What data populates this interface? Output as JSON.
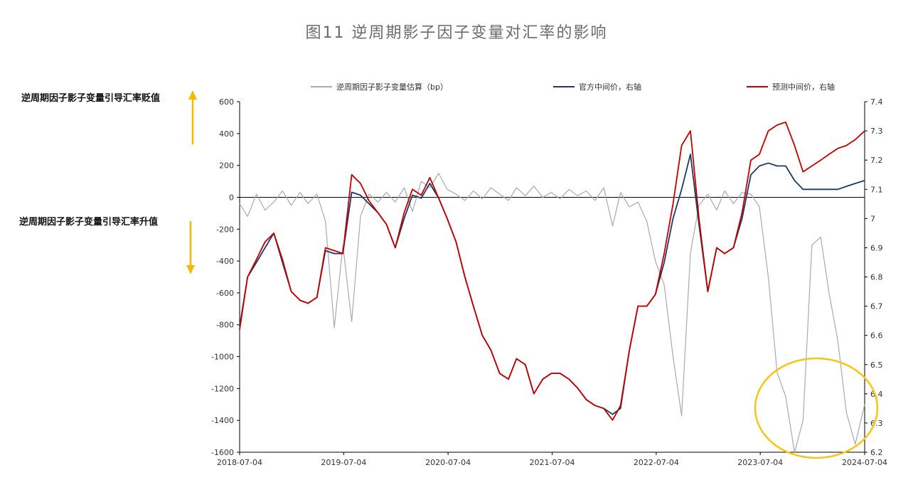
{
  "figure_title": "图11 逆周期影子因子变量对汇率的影响",
  "annotations": {
    "up_label": "逆周期因子影子变量引导汇率贬值",
    "down_label": "逆周期因子影子变量引导汇率升值",
    "arrow_color": "#f5b800",
    "highlight_circle_color": "#f5c518"
  },
  "chart_data": {
    "type": "line",
    "title": "",
    "x_ticks": [
      "2018-07-04",
      "2019-07-04",
      "2020-07-04",
      "2021-07-04",
      "2022-07-04",
      "2023-07-04",
      "2024-07-04"
    ],
    "x_range": [
      "2018-07-04",
      "2024-07-04"
    ],
    "y_left": {
      "min": -1600,
      "max": 600,
      "ticks": [
        600,
        400,
        200,
        0,
        -200,
        -400,
        -600,
        -800,
        -1000,
        -1200,
        -1400,
        -1600
      ]
    },
    "y_right": {
      "min": 6.2,
      "max": 7.4,
      "ticks": [
        "7.4",
        "7.3",
        "7.2",
        "7.1",
        "7",
        "6.9",
        "6.8",
        "6.7",
        "6.6",
        "6.5",
        "6.4",
        "6.3",
        "6.2"
      ]
    },
    "grid": false,
    "legend_position": "top",
    "series": [
      {
        "name": "逆周期因子影子变量估算（bp）",
        "axis": "left",
        "color": "#aaaaaa",
        "points": [
          [
            "2018-07-04",
            -40
          ],
          [
            "2018-08-01",
            -120
          ],
          [
            "2018-09-01",
            20
          ],
          [
            "2018-10-01",
            -80
          ],
          [
            "2018-11-01",
            -30
          ],
          [
            "2018-12-01",
            40
          ],
          [
            "2019-01-01",
            -50
          ],
          [
            "2019-02-01",
            30
          ],
          [
            "2019-03-01",
            -40
          ],
          [
            "2019-04-01",
            20
          ],
          [
            "2019-05-01",
            -150
          ],
          [
            "2019-06-01",
            -820
          ],
          [
            "2019-07-01",
            -300
          ],
          [
            "2019-08-01",
            -780
          ],
          [
            "2019-09-01",
            -120
          ],
          [
            "2019-10-01",
            20
          ],
          [
            "2019-11-01",
            -30
          ],
          [
            "2019-12-01",
            30
          ],
          [
            "2020-01-01",
            -30
          ],
          [
            "2020-02-01",
            60
          ],
          [
            "2020-03-01",
            -90
          ],
          [
            "2020-04-01",
            100
          ],
          [
            "2020-05-01",
            60
          ],
          [
            "2020-06-01",
            150
          ],
          [
            "2020-07-01",
            50
          ],
          [
            "2020-08-01",
            20
          ],
          [
            "2020-09-01",
            -20
          ],
          [
            "2020-10-01",
            40
          ],
          [
            "2020-11-01",
            -10
          ],
          [
            "2020-12-01",
            60
          ],
          [
            "2021-01-01",
            20
          ],
          [
            "2021-02-01",
            -20
          ],
          [
            "2021-03-01",
            60
          ],
          [
            "2021-04-01",
            10
          ],
          [
            "2021-05-01",
            70
          ],
          [
            "2021-06-01",
            0
          ],
          [
            "2021-07-01",
            30
          ],
          [
            "2021-08-01",
            -10
          ],
          [
            "2021-09-01",
            50
          ],
          [
            "2021-10-01",
            10
          ],
          [
            "2021-11-01",
            40
          ],
          [
            "2021-12-01",
            -20
          ],
          [
            "2022-01-01",
            60
          ],
          [
            "2022-02-01",
            -180
          ],
          [
            "2022-03-01",
            30
          ],
          [
            "2022-04-01",
            -60
          ],
          [
            "2022-05-01",
            -30
          ],
          [
            "2022-06-01",
            -150
          ],
          [
            "2022-07-01",
            -400
          ],
          [
            "2022-08-01",
            -550
          ],
          [
            "2022-09-01",
            -1000
          ],
          [
            "2022-10-01",
            -1370
          ],
          [
            "2022-11-01",
            -350
          ],
          [
            "2022-12-01",
            -50
          ],
          [
            "2023-01-01",
            20
          ],
          [
            "2023-02-01",
            -80
          ],
          [
            "2023-03-01",
            40
          ],
          [
            "2023-04-01",
            -40
          ],
          [
            "2023-05-01",
            30
          ],
          [
            "2023-06-01",
            20
          ],
          [
            "2023-07-01",
            -60
          ],
          [
            "2023-08-01",
            -500
          ],
          [
            "2023-09-01",
            -1100
          ],
          [
            "2023-10-01",
            -1250
          ],
          [
            "2023-11-01",
            -1600
          ],
          [
            "2023-12-01",
            -1400
          ],
          [
            "2024-01-01",
            -300
          ],
          [
            "2024-02-01",
            -250
          ],
          [
            "2024-03-01",
            -600
          ],
          [
            "2024-04-01",
            -900
          ],
          [
            "2024-05-01",
            -1350
          ],
          [
            "2024-06-01",
            -1550
          ],
          [
            "2024-07-04",
            -1300
          ]
        ]
      },
      {
        "name": "官方中间价，右轴",
        "axis": "right",
        "color": "#1f3864",
        "points": [
          [
            "2018-07-04",
            6.63
          ],
          [
            "2018-08-01",
            6.8
          ],
          [
            "2018-09-01",
            6.85
          ],
          [
            "2018-10-01",
            6.9
          ],
          [
            "2018-11-01",
            6.95
          ],
          [
            "2018-12-01",
            6.85
          ],
          [
            "2019-01-01",
            6.75
          ],
          [
            "2019-02-01",
            6.72
          ],
          [
            "2019-03-01",
            6.71
          ],
          [
            "2019-04-01",
            6.73
          ],
          [
            "2019-05-01",
            6.89
          ],
          [
            "2019-06-01",
            6.88
          ],
          [
            "2019-07-01",
            6.88
          ],
          [
            "2019-08-01",
            7.09
          ],
          [
            "2019-09-01",
            7.08
          ],
          [
            "2019-10-01",
            7.05
          ],
          [
            "2019-11-01",
            7.02
          ],
          [
            "2019-12-01",
            6.98
          ],
          [
            "2020-01-01",
            6.9
          ],
          [
            "2020-02-01",
            7.0
          ],
          [
            "2020-03-01",
            7.08
          ],
          [
            "2020-04-01",
            7.07
          ],
          [
            "2020-05-01",
            7.12
          ],
          [
            "2020-06-01",
            7.07
          ],
          [
            "2020-07-01",
            7.0
          ],
          [
            "2020-08-01",
            6.92
          ],
          [
            "2020-09-01",
            6.8
          ],
          [
            "2020-10-01",
            6.7
          ],
          [
            "2020-11-01",
            6.6
          ],
          [
            "2020-12-01",
            6.55
          ],
          [
            "2021-01-01",
            6.47
          ],
          [
            "2021-02-01",
            6.45
          ],
          [
            "2021-03-01",
            6.52
          ],
          [
            "2021-04-01",
            6.5
          ],
          [
            "2021-05-01",
            6.4
          ],
          [
            "2021-06-01",
            6.45
          ],
          [
            "2021-07-01",
            6.47
          ],
          [
            "2021-08-01",
            6.47
          ],
          [
            "2021-09-01",
            6.45
          ],
          [
            "2021-10-01",
            6.42
          ],
          [
            "2021-11-01",
            6.38
          ],
          [
            "2021-12-01",
            6.36
          ],
          [
            "2022-01-01",
            6.35
          ],
          [
            "2022-02-01",
            6.33
          ],
          [
            "2022-03-01",
            6.35
          ],
          [
            "2022-04-01",
            6.55
          ],
          [
            "2022-05-01",
            6.7
          ],
          [
            "2022-06-01",
            6.7
          ],
          [
            "2022-07-01",
            6.74
          ],
          [
            "2022-08-01",
            6.85
          ],
          [
            "2022-09-01",
            7.0
          ],
          [
            "2022-10-01",
            7.1
          ],
          [
            "2022-11-01",
            7.22
          ],
          [
            "2022-12-01",
            6.98
          ],
          [
            "2023-01-01",
            6.75
          ],
          [
            "2023-02-01",
            6.9
          ],
          [
            "2023-03-01",
            6.88
          ],
          [
            "2023-04-01",
            6.9
          ],
          [
            "2023-05-01",
            7.0
          ],
          [
            "2023-06-01",
            7.15
          ],
          [
            "2023-07-01",
            7.18
          ],
          [
            "2023-08-01",
            7.19
          ],
          [
            "2023-09-01",
            7.18
          ],
          [
            "2023-10-01",
            7.18
          ],
          [
            "2023-11-01",
            7.13
          ],
          [
            "2023-12-01",
            7.1
          ],
          [
            "2024-01-01",
            7.1
          ],
          [
            "2024-02-01",
            7.1
          ],
          [
            "2024-03-01",
            7.1
          ],
          [
            "2024-04-01",
            7.1
          ],
          [
            "2024-05-01",
            7.11
          ],
          [
            "2024-06-01",
            7.12
          ],
          [
            "2024-07-04",
            7.13
          ]
        ]
      },
      {
        "name": "预测中间价，右轴",
        "axis": "right",
        "color": "#c00000",
        "points": [
          [
            "2018-07-04",
            6.62
          ],
          [
            "2018-08-01",
            6.8
          ],
          [
            "2018-09-01",
            6.86
          ],
          [
            "2018-10-01",
            6.92
          ],
          [
            "2018-11-01",
            6.95
          ],
          [
            "2018-12-01",
            6.86
          ],
          [
            "2019-01-01",
            6.75
          ],
          [
            "2019-02-01",
            6.72
          ],
          [
            "2019-03-01",
            6.71
          ],
          [
            "2019-04-01",
            6.73
          ],
          [
            "2019-05-01",
            6.9
          ],
          [
            "2019-06-01",
            6.89
          ],
          [
            "2019-07-01",
            6.88
          ],
          [
            "2019-08-01",
            7.15
          ],
          [
            "2019-09-01",
            7.12
          ],
          [
            "2019-10-01",
            7.06
          ],
          [
            "2019-11-01",
            7.02
          ],
          [
            "2019-12-01",
            6.98
          ],
          [
            "2020-01-01",
            6.9
          ],
          [
            "2020-02-01",
            7.02
          ],
          [
            "2020-03-01",
            7.1
          ],
          [
            "2020-04-01",
            7.08
          ],
          [
            "2020-05-01",
            7.14
          ],
          [
            "2020-06-01",
            7.07
          ],
          [
            "2020-07-01",
            7.0
          ],
          [
            "2020-08-01",
            6.92
          ],
          [
            "2020-09-01",
            6.8
          ],
          [
            "2020-10-01",
            6.7
          ],
          [
            "2020-11-01",
            6.6
          ],
          [
            "2020-12-01",
            6.55
          ],
          [
            "2021-01-01",
            6.47
          ],
          [
            "2021-02-01",
            6.45
          ],
          [
            "2021-03-01",
            6.52
          ],
          [
            "2021-04-01",
            6.5
          ],
          [
            "2021-05-01",
            6.4
          ],
          [
            "2021-06-01",
            6.45
          ],
          [
            "2021-07-01",
            6.47
          ],
          [
            "2021-08-01",
            6.47
          ],
          [
            "2021-09-01",
            6.45
          ],
          [
            "2021-10-01",
            6.42
          ],
          [
            "2021-11-01",
            6.38
          ],
          [
            "2021-12-01",
            6.36
          ],
          [
            "2022-01-01",
            6.35
          ],
          [
            "2022-02-01",
            6.31
          ],
          [
            "2022-03-01",
            6.36
          ],
          [
            "2022-04-01",
            6.55
          ],
          [
            "2022-05-01",
            6.7
          ],
          [
            "2022-06-01",
            6.7
          ],
          [
            "2022-07-01",
            6.74
          ],
          [
            "2022-08-01",
            6.88
          ],
          [
            "2022-09-01",
            7.05
          ],
          [
            "2022-10-01",
            7.25
          ],
          [
            "2022-11-01",
            7.3
          ],
          [
            "2022-12-01",
            7.0
          ],
          [
            "2023-01-01",
            6.75
          ],
          [
            "2023-02-01",
            6.9
          ],
          [
            "2023-03-01",
            6.88
          ],
          [
            "2023-04-01",
            6.9
          ],
          [
            "2023-05-01",
            7.02
          ],
          [
            "2023-06-01",
            7.2
          ],
          [
            "2023-07-01",
            7.22
          ],
          [
            "2023-08-01",
            7.3
          ],
          [
            "2023-09-01",
            7.32
          ],
          [
            "2023-10-01",
            7.33
          ],
          [
            "2023-11-01",
            7.25
          ],
          [
            "2023-12-01",
            7.16
          ],
          [
            "2024-01-01",
            7.18
          ],
          [
            "2024-02-01",
            7.2
          ],
          [
            "2024-03-01",
            7.22
          ],
          [
            "2024-04-01",
            7.24
          ],
          [
            "2024-05-01",
            7.25
          ],
          [
            "2024-06-01",
            7.27
          ],
          [
            "2024-07-04",
            7.3
          ]
        ]
      }
    ]
  }
}
